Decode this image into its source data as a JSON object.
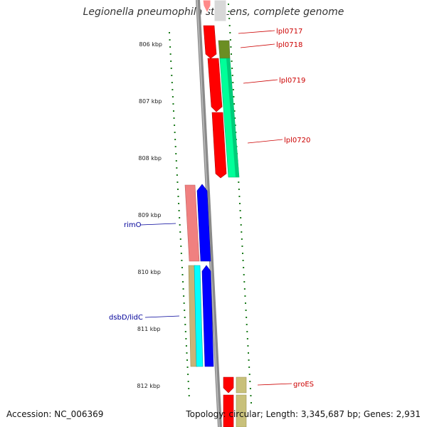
{
  "title": "Legionella pneumophila str. Lens, complete genome",
  "footer": {
    "accession": "Accession: NC_006369",
    "topology": "Topology: circular; Length: 3,345,687 bp; Genes: 2,931"
  },
  "ruler": {
    "labels": [
      "806 kbp",
      "807 kbp",
      "808 kbp",
      "809 kbp",
      "810 kbp",
      "811 kbp",
      "812 kbp"
    ]
  },
  "colors": {
    "forward_label": "#cc0000",
    "reverse_label": "#000099",
    "backbone": "#888888",
    "tick": "#1a7a1a"
  },
  "genes": [
    {
      "name": "lpl0717",
      "strand": "forward",
      "color": "#ff0000"
    },
    {
      "name": "lpl0718",
      "strand": "forward",
      "color": "#6b8e23"
    },
    {
      "name": "lpl0719",
      "strand": "forward",
      "color": "#ff0000"
    },
    {
      "name": "lpl0720",
      "strand": "forward",
      "color": "#00ff99"
    },
    {
      "name": "rimO",
      "strand": "reverse",
      "color": "#f08080"
    },
    {
      "name": "dsbD/lidC",
      "strand": "reverse",
      "color": "#c8b478"
    },
    {
      "name": "groES",
      "strand": "forward",
      "color": "#ff0000"
    }
  ]
}
